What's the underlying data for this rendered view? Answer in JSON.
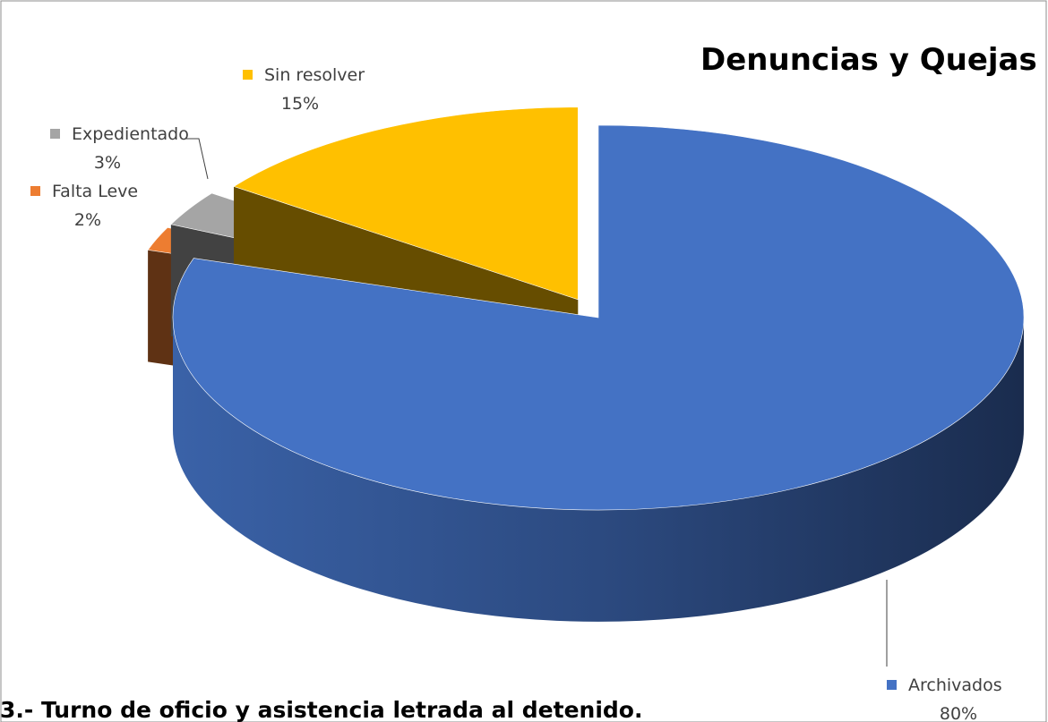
{
  "chart_data": {
    "type": "pie3d",
    "title": "Denuncias y Quejas",
    "categories": [
      "Archivados",
      "Falta Leve",
      "Expedientado",
      "Sin resolver"
    ],
    "values": [
      80,
      2,
      3,
      15
    ],
    "value_labels": [
      "80%",
      "2%",
      "3%",
      "15%"
    ],
    "colors": [
      "#4472c4",
      "#ed7d31",
      "#a5a5a5",
      "#ffc000"
    ]
  },
  "heading": "3.- Turno de oficio y asistencia letrada al detenido."
}
